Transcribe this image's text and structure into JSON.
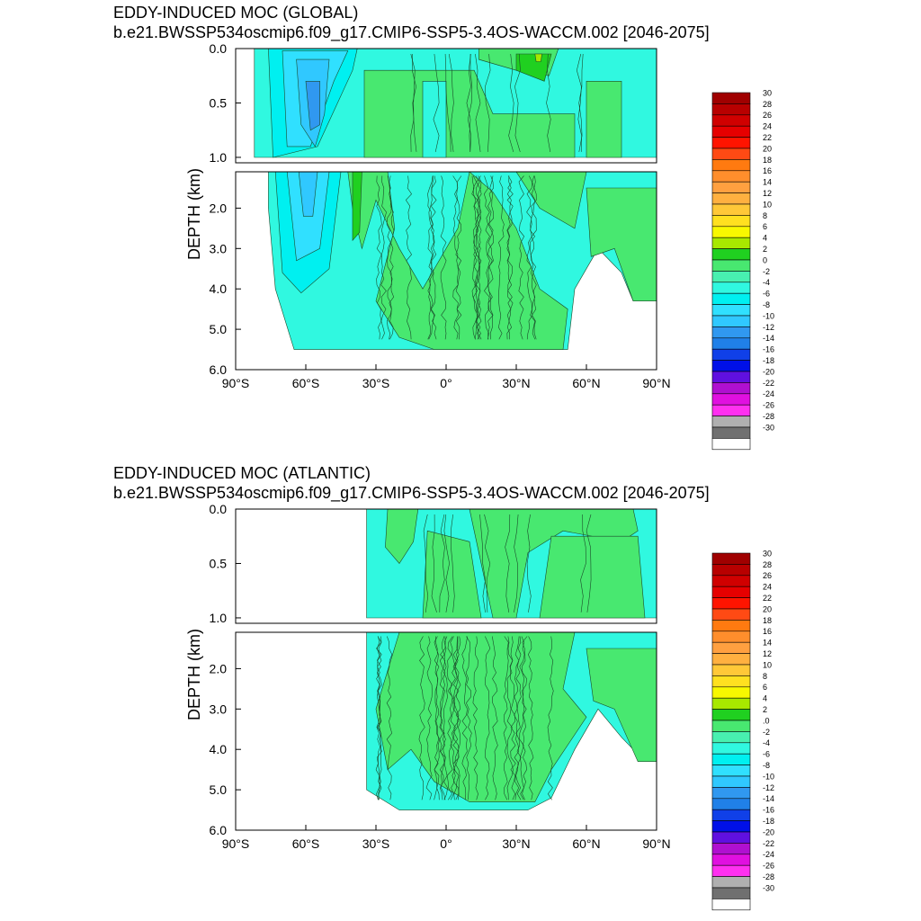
{
  "chart_data": [
    {
      "type": "heatmap",
      "title": "EDDY-INDUCED MOC (GLOBAL)",
      "subtitle": "b.e21.BWSSP534oscmip6.f09_g17.CMIP6-SSP5-3.4OS-WACCM.002 [2046-2075]",
      "ylabel": "DEPTH (km)",
      "xlim": [
        -90,
        90
      ],
      "ylim": [
        6.0,
        0.0
      ],
      "x_ticks": [
        "90°S",
        "60°S",
        "30°S",
        "0°",
        "30°N",
        "60°N",
        "90°N"
      ],
      "y_ticks_upper": [
        "0.0",
        "0.5",
        "1.0"
      ],
      "y_ticks_lower": [
        "2.0",
        "3.0",
        "4.0",
        "5.0",
        "6.0"
      ],
      "colorbar_labels": [
        "30",
        "28",
        "26",
        "24",
        "22",
        "20",
        "18",
        "16",
        "14",
        "12",
        "10",
        "8",
        "6",
        "4",
        "2",
        "0",
        "-2",
        "-4",
        "-6",
        "-8",
        "-10",
        "-12",
        "-14",
        "-16",
        "-18",
        "-20",
        "-22",
        "-24",
        "-26",
        "-28",
        "-30"
      ],
      "features": [
        {
          "value": -12,
          "x_range": [
            -60,
            -45
          ],
          "depth_range": [
            0.2,
            1.0
          ]
        },
        {
          "value": -8,
          "x_range": [
            -68,
            -40
          ],
          "depth_range": [
            0.05,
            3.5
          ]
        },
        {
          "value": 2,
          "x_range": [
            15,
            45
          ],
          "depth_range": [
            0.0,
            0.3
          ]
        },
        {
          "value": 4,
          "x_range": [
            38,
            42
          ],
          "depth_range": [
            0.0,
            0.1
          ]
        }
      ]
    },
    {
      "type": "heatmap",
      "title": "EDDY-INDUCED MOC (ATLANTIC)",
      "subtitle": "b.e21.BWSSP534oscmip6.f09_g17.CMIP6-SSP5-3.4OS-WACCM.002 [2046-2075]",
      "ylabel": "DEPTH (km)",
      "xlim": [
        -90,
        90
      ],
      "ylim": [
        6.0,
        0.0
      ],
      "x_ticks": [
        "90°S",
        "60°S",
        "30°S",
        "0°",
        "30°N",
        "60°N",
        "90°N"
      ],
      "y_ticks_upper": [
        "0.0",
        "0.5",
        "1.0"
      ],
      "y_ticks_lower": [
        "2.0",
        "3.0",
        "4.0",
        "5.0",
        "6.0"
      ],
      "colorbar_labels": [
        "30",
        "28",
        "26",
        "24",
        "22",
        "20",
        "18",
        "16",
        "14",
        "12",
        "10",
        "8",
        "6",
        "4",
        "2",
        ".0",
        "-2",
        "-4",
        "-6",
        "-8",
        "-10",
        "-12",
        "-14",
        "-16",
        "-18",
        "-20",
        "-22",
        "-24",
        "-26",
        "-28",
        "-30"
      ],
      "features": [
        {
          "value": -2,
          "x_range": [
            -34,
            90
          ],
          "depth_range": [
            0.0,
            5.5
          ]
        },
        {
          "value": 2,
          "x_range": [
            -5,
            80
          ],
          "depth_range": [
            0.3,
            4.5
          ]
        }
      ]
    }
  ],
  "palette": [
    "#a00000",
    "#b80000",
    "#d00000",
    "#e60000",
    "#ff1400",
    "#ff4a14",
    "#ff7a10",
    "#ff8e2c",
    "#ffa040",
    "#ffb040",
    "#ffc838",
    "#ffe020",
    "#f8f800",
    "#a8e800",
    "#20d020",
    "#48e870",
    "#48f0b0",
    "#30f8e0",
    "#00f0f0",
    "#30e0ff",
    "#30c8ff",
    "#3098f0",
    "#2080e8",
    "#1040e8",
    "#0010e8",
    "#6010e0",
    "#b010d0",
    "#e010e0",
    "#ff30f0",
    "#b0b0b0",
    "#707070",
    "#ffffff"
  ]
}
